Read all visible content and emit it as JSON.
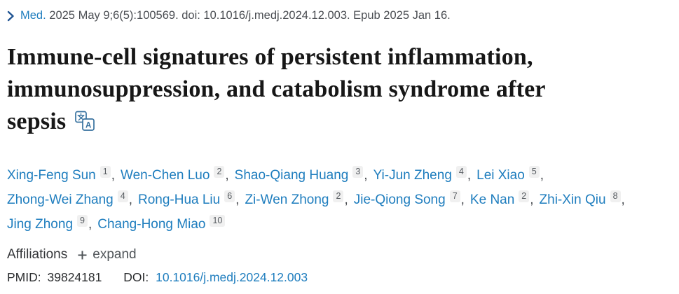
{
  "colors": {
    "accent_link": "#1e7dbe",
    "chevron": "#205493",
    "citation_text": "#4a4d52",
    "title_text": "#171717",
    "badge_bg": "#f0f0f0",
    "icon_blue": "#37719f"
  },
  "icons": {
    "chevron_right": "›",
    "translate": "文/A",
    "plus": "+"
  },
  "citation": {
    "journal": "Med.",
    "rest": "2025 May 9;6(5):100569. doi: 10.1016/j.medj.2024.12.003. Epub 2025 Jan 16."
  },
  "title": {
    "lines": [
      "Immune-cell signatures of persistent inflammation,",
      "immunosuppression, and catabolism syndrome after",
      "sepsis"
    ]
  },
  "authors": {
    "lines": [
      [
        {
          "name": "Xing-Feng Sun",
          "sup": "1"
        },
        {
          "name": "Wen-Chen Luo",
          "sup": "2"
        },
        {
          "name": "Shao-Qiang Huang",
          "sup": "3"
        },
        {
          "name": "Yi-Jun Zheng",
          "sup": "4"
        },
        {
          "name": "Lei Xiao",
          "sup": "5"
        }
      ],
      [
        {
          "name": "Zhong-Wei Zhang",
          "sup": "4"
        },
        {
          "name": "Rong-Hua Liu",
          "sup": "6"
        },
        {
          "name": "Zi-Wen Zhong",
          "sup": "2"
        },
        {
          "name": "Jie-Qiong Song",
          "sup": "7"
        },
        {
          "name": "Ke Nan",
          "sup": "2"
        },
        {
          "name": "Zhi-Xin Qiu",
          "sup": "8"
        }
      ],
      [
        {
          "name": "Jing Zhong",
          "sup": "9"
        },
        {
          "name": "Chang-Hong Miao",
          "sup": "10"
        }
      ]
    ]
  },
  "affiliations": {
    "label": "Affiliations",
    "expand_label": "expand"
  },
  "ids": {
    "pmid_label": "PMID:",
    "pmid_value": "39824181",
    "doi_label": "DOI:",
    "doi_value": "10.1016/j.medj.2024.12.003"
  }
}
